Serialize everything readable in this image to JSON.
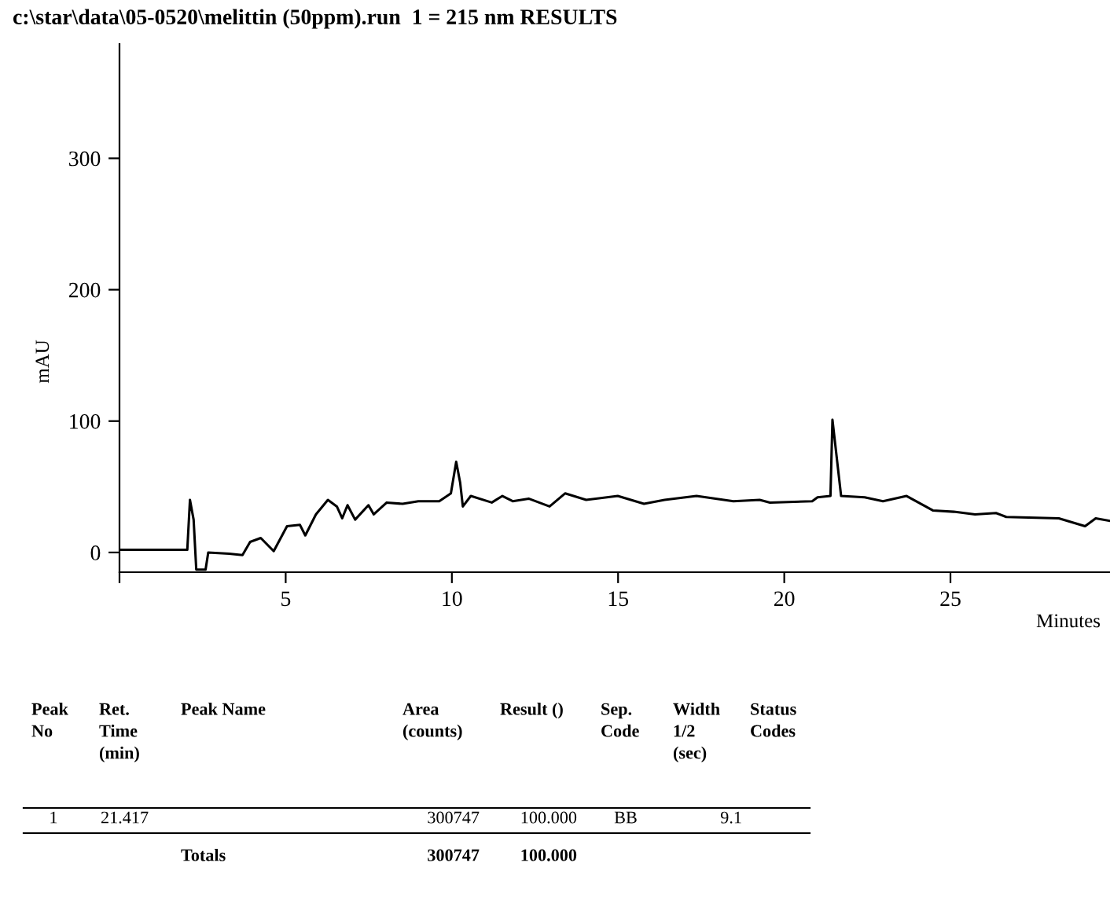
{
  "chart_data": {
    "type": "line",
    "title": "c:\\star\\data\\05-0520\\melittin (50ppm).run  1 = 215 nm RESULTS",
    "xlabel": "Minutes",
    "ylabel": "mAU",
    "xlim": [
      0,
      29.8
    ],
    "ylim": [
      -15,
      387
    ],
    "xticks": [
      {
        "value": 0,
        "label": null
      },
      5,
      10,
      15,
      20,
      25
    ],
    "yticks": [
      0,
      100,
      200,
      300
    ],
    "grid": false,
    "marker": "none",
    "line_style": "solid",
    "series": [
      {
        "color": "#000000",
        "x": [
          0,
          2.04,
          2.12,
          2.23,
          2.31,
          2.59,
          2.67,
          3.3,
          3.7,
          3.93,
          4.25,
          4.64,
          5.04,
          5.43,
          5.59,
          5.91,
          6.27,
          6.54,
          6.7,
          6.86,
          7.09,
          7.49,
          7.65,
          8.04,
          8.52,
          8.99,
          9.62,
          9.97,
          10.13,
          10.25,
          10.33,
          10.57,
          11.2,
          11.52,
          11.83,
          12.31,
          12.94,
          13.41,
          14.04,
          14.99,
          15.78,
          16.4,
          17.36,
          18.47,
          19.26,
          19.57,
          20.84,
          21.0,
          21.39,
          21.45,
          21.71,
          22.42,
          22.97,
          23.68,
          24.47,
          25.1,
          25.74,
          26.37,
          26.68,
          28.26,
          29.05,
          29.37,
          29.8
        ],
        "values": [
          2,
          2,
          40,
          25,
          -13,
          -13,
          0,
          -1,
          -2,
          8,
          11,
          1,
          20,
          21,
          13,
          29,
          40,
          35,
          26,
          36,
          25,
          36,
          29,
          38,
          37,
          39,
          39,
          45,
          69,
          53,
          35,
          43,
          38,
          43,
          39,
          41,
          35,
          45,
          40,
          43,
          37,
          40,
          43,
          39,
          40,
          38,
          39,
          42,
          43,
          101,
          43,
          42,
          39,
          43,
          32,
          31,
          29,
          30,
          27,
          26,
          20,
          26,
          24
        ]
      }
    ],
    "annotations": [
      "Peak\nNo",
      "Ret.\nTime\n(min)",
      "Peak Name",
      "Area\n(counts)",
      "Result ()",
      "Sep.\nCode",
      "Width\n1/2\n(sec)",
      "Status\nCodes",
      "1",
      "21.417",
      "300747",
      "100.000",
      "BB",
      "9.1",
      "Totals",
      "300747",
      "100.000"
    ]
  }
}
